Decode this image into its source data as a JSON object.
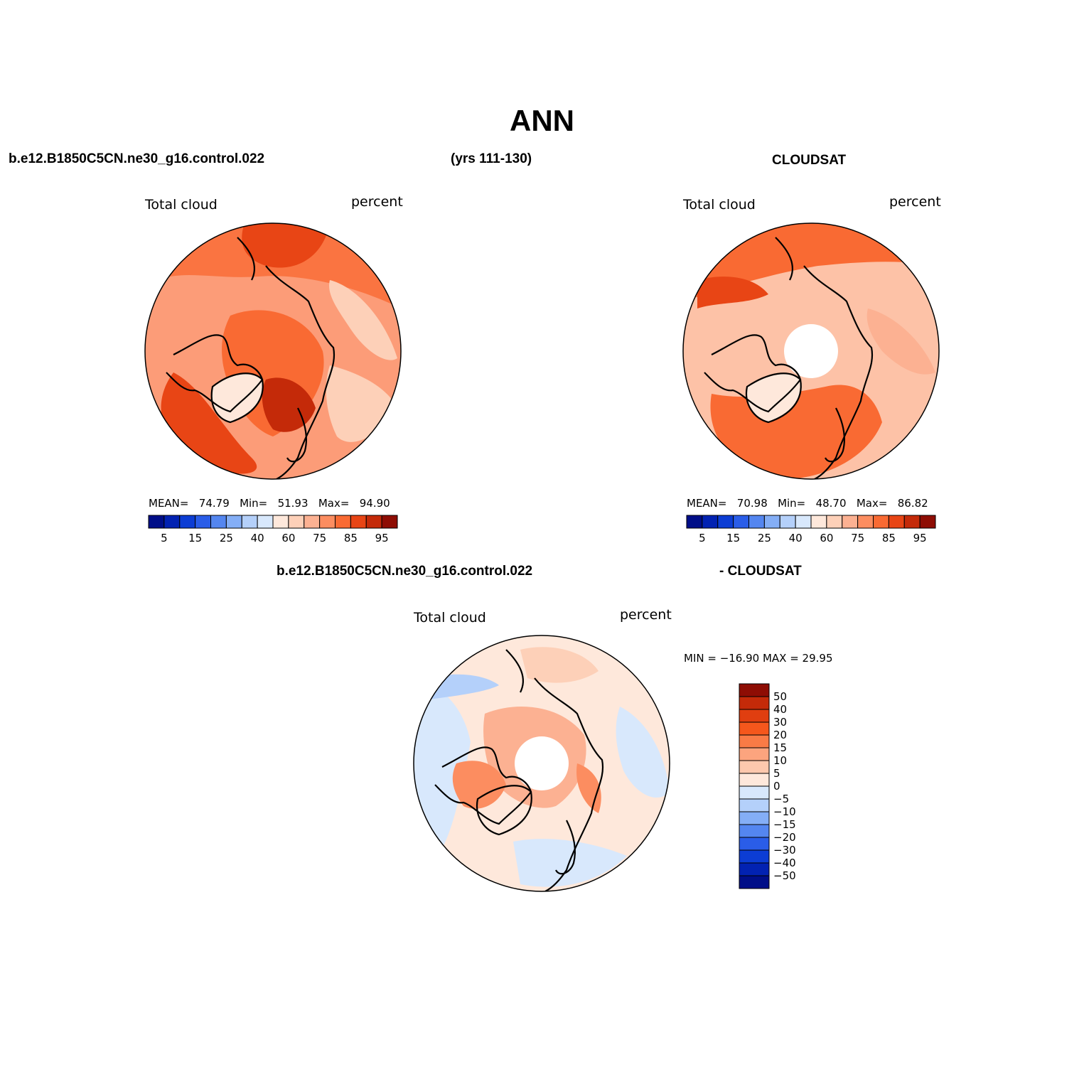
{
  "title": "ANN",
  "headers": {
    "case": "b.e12.B1850C5CN.ne30_g16.control.022",
    "years": "(yrs 111-130)",
    "obs": "CLOUDSAT",
    "diff_case": "b.e12.B1850C5CN.ne30_g16.control.022",
    "diff_obs": "- CLOUDSAT"
  },
  "panels": {
    "model": {
      "left_label": "Total cloud",
      "right_label": "percent",
      "mean_label": "MEAN=",
      "mean": "74.79",
      "min_label": "Min=",
      "min": "51.93",
      "max_label": "Max=",
      "max": "94.90",
      "background_color": "#fc9c78"
    },
    "obs": {
      "left_label": "Total cloud",
      "right_label": "percent",
      "mean_label": "MEAN=",
      "mean": "70.98",
      "min_label": "Min=",
      "min": "48.70",
      "max_label": "Max=",
      "max": "86.82",
      "background_color": "#fdc2a7"
    },
    "diff": {
      "left_label": "Total cloud",
      "right_label": "percent",
      "minmax": "MIN = −16.90 MAX =   29.95",
      "background_color": "#fee8db"
    }
  },
  "colorbar_horizontal": {
    "colors": [
      "#000e88",
      "#0222b2",
      "#0c3dd4",
      "#2a5de8",
      "#5486f0",
      "#84aef6",
      "#b4d0fa",
      "#d8e8fc",
      "#fee8db",
      "#fdd0b8",
      "#fcb192",
      "#fc8d60",
      "#f96a33",
      "#e84515",
      "#c42a09",
      "#8e0d04"
    ],
    "tick_labels": [
      "5",
      "15",
      "25",
      "40",
      "60",
      "75",
      "85",
      "95"
    ]
  },
  "colorbar_vertical": {
    "colors_top_to_bottom": [
      "#8e0d04",
      "#c42a09",
      "#e03e10",
      "#f5571c",
      "#f97b46",
      "#fca47e",
      "#fdc8ad",
      "#fee8db",
      "#d8e8fc",
      "#b4d0fa",
      "#84aef6",
      "#5486f0",
      "#2a5de8",
      "#0c3dd4",
      "#0222b2",
      "#000e88"
    ],
    "labels": [
      "50",
      "40",
      "30",
      "20",
      "15",
      "10",
      "5",
      "0",
      "−5",
      "−10",
      "−15",
      "−20",
      "−30",
      "−40",
      "−50"
    ]
  }
}
